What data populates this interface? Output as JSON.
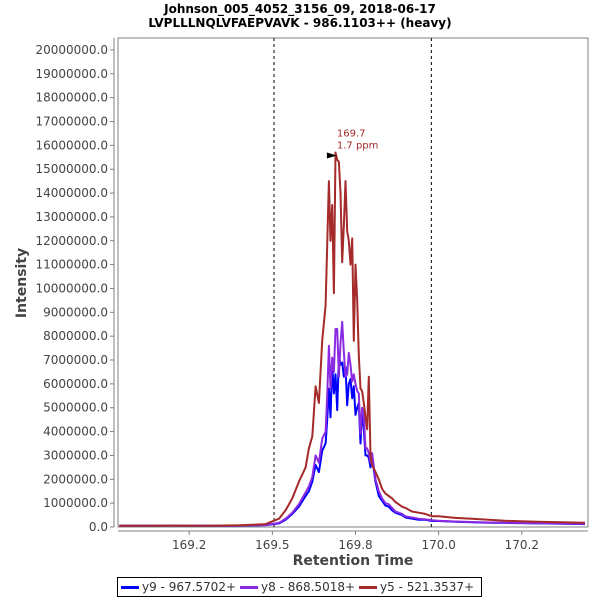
{
  "chart_data": {
    "type": "line",
    "title": "Johnson_005_4052_3156_09, 2018-06-17",
    "subtitle": "LVPLLLNQLVFAEPVAVK - 986.1103++ (heavy)",
    "xlabel": "Retention Time",
    "ylabel": "Intensity",
    "xlim": [
      169.036,
      170.449
    ],
    "ylim": [
      0,
      20500000
    ],
    "x_ticks": [
      169.25,
      169.5,
      169.75,
      170.0,
      170.25
    ],
    "x_tick_labels": [
      "169.2",
      "169.5",
      "169.8",
      "170.0",
      "170.2"
    ],
    "y_ticks": [
      0,
      1000000,
      2000000,
      3000000,
      4000000,
      5000000,
      6000000,
      7000000,
      8000000,
      9000000,
      10000000,
      11000000,
      12000000,
      13000000,
      14000000,
      15000000,
      16000000,
      17000000,
      18000000,
      19000000,
      20000000
    ],
    "y_tick_labels": [
      "0.0",
      "1000000.0",
      "2000000.0",
      "3000000.0",
      "4000000.0",
      "5000000.0",
      "6000000.0",
      "7000000.0",
      "8000000.0",
      "9000000.0",
      "10000000.0",
      "11000000.0",
      "12000000.0",
      "13000000.0",
      "14000000.0",
      "15000000.0",
      "16000000.0",
      "17000000.0",
      "18000000.0",
      "19000000.0",
      "20000000.0"
    ],
    "grid": false,
    "legend_position": "bottom",
    "boundary_lines": [
      169.505,
      169.978
    ],
    "annotation": {
      "x": 169.7,
      "y": 15700000,
      "line1": "169.7",
      "line2": "1.7 ppm",
      "color": "#a52a2a"
    },
    "series": [
      {
        "name": "y9 - 967.5702+",
        "color": "#0000ff",
        "x": [
          169.04,
          169.1,
          169.2,
          169.3,
          169.4,
          169.48,
          169.52,
          169.54,
          169.56,
          169.58,
          169.6,
          169.61,
          169.62,
          169.63,
          169.64,
          169.65,
          169.66,
          169.665,
          169.67,
          169.675,
          169.68,
          169.685,
          169.69,
          169.695,
          169.7,
          169.705,
          169.71,
          169.715,
          169.72,
          169.725,
          169.73,
          169.735,
          169.74,
          169.745,
          169.75,
          169.755,
          169.76,
          169.765,
          169.77,
          169.775,
          169.78,
          169.785,
          169.79,
          169.795,
          169.8,
          169.81,
          169.82,
          169.83,
          169.84,
          169.85,
          169.86,
          169.87,
          169.88,
          169.89,
          169.9,
          169.92,
          169.94,
          169.96,
          169.98,
          170.0,
          170.05,
          170.1,
          170.15,
          170.2,
          170.3,
          170.44
        ],
        "y": [
          50000,
          50000,
          60000,
          50000,
          60000,
          80000,
          150000,
          300000,
          550000,
          850000,
          1300000,
          1500000,
          1900000,
          2600000,
          2300000,
          3200000,
          3500000,
          4500000,
          5800000,
          4600000,
          6800000,
          5600000,
          6400000,
          4900000,
          7200000,
          6800000,
          6900000,
          6300000,
          6700000,
          5100000,
          6000000,
          6200000,
          5400000,
          5900000,
          4700000,
          5000000,
          5200000,
          3500000,
          4900000,
          4100000,
          3000000,
          3000000,
          2900000,
          2500000,
          2900000,
          1900000,
          1300000,
          1100000,
          900000,
          850000,
          700000,
          600000,
          550000,
          500000,
          400000,
          350000,
          300000,
          300000,
          250000,
          250000,
          220000,
          200000,
          180000,
          170000,
          150000,
          120000
        ]
      },
      {
        "name": "y8 - 868.5018+",
        "color": "#8a2be2",
        "x": [
          169.04,
          169.1,
          169.2,
          169.3,
          169.4,
          169.48,
          169.52,
          169.54,
          169.56,
          169.58,
          169.6,
          169.61,
          169.62,
          169.63,
          169.64,
          169.65,
          169.66,
          169.665,
          169.67,
          169.675,
          169.68,
          169.685,
          169.69,
          169.695,
          169.7,
          169.705,
          169.71,
          169.715,
          169.72,
          169.725,
          169.73,
          169.735,
          169.74,
          169.745,
          169.75,
          169.755,
          169.76,
          169.765,
          169.77,
          169.775,
          169.78,
          169.785,
          169.79,
          169.795,
          169.8,
          169.81,
          169.82,
          169.83,
          169.84,
          169.85,
          169.86,
          169.87,
          169.88,
          169.89,
          169.9,
          169.92,
          169.94,
          169.96,
          169.98,
          170.0,
          170.05,
          170.1,
          170.15,
          170.2,
          170.3,
          170.44
        ],
        "y": [
          50000,
          50000,
          60000,
          50000,
          60000,
          90000,
          170000,
          350000,
          600000,
          950000,
          1450000,
          1700000,
          2100000,
          3000000,
          2700000,
          3700000,
          4000000,
          5500000,
          7600000,
          5800000,
          7100000,
          6500000,
          8300000,
          8300000,
          6300000,
          7700000,
          8600000,
          7300000,
          6300000,
          6400000,
          7300000,
          6800000,
          6100000,
          6400000,
          6000000,
          5700000,
          5600000,
          3900000,
          5000000,
          4700000,
          3300000,
          3300000,
          3100000,
          2700000,
          3100000,
          2000000,
          1500000,
          1200000,
          1000000,
          950000,
          800000,
          650000,
          600000,
          550000,
          450000,
          400000,
          350000,
          320000,
          280000,
          260000,
          230000,
          210000,
          190000,
          180000,
          160000,
          130000
        ]
      },
      {
        "name": "y5 - 521.3537+",
        "color": "#a52a2a",
        "x": [
          169.04,
          169.1,
          169.2,
          169.3,
          169.4,
          169.48,
          169.52,
          169.54,
          169.56,
          169.58,
          169.6,
          169.61,
          169.62,
          169.63,
          169.64,
          169.65,
          169.66,
          169.665,
          169.67,
          169.675,
          169.68,
          169.685,
          169.69,
          169.695,
          169.7,
          169.705,
          169.71,
          169.715,
          169.72,
          169.725,
          169.73,
          169.735,
          169.74,
          169.745,
          169.75,
          169.755,
          169.76,
          169.765,
          169.77,
          169.775,
          169.78,
          169.785,
          169.79,
          169.795,
          169.8,
          169.81,
          169.82,
          169.83,
          169.84,
          169.85,
          169.86,
          169.87,
          169.88,
          169.89,
          169.9,
          169.92,
          169.94,
          169.96,
          169.98,
          170.0,
          170.05,
          170.1,
          170.15,
          170.2,
          170.3,
          170.44
        ],
        "y": [
          50000,
          50000,
          60000,
          50000,
          70000,
          120000,
          350000,
          700000,
          1200000,
          1900000,
          2500000,
          3300000,
          3800000,
          5900000,
          5200000,
          7800000,
          9300000,
          11800000,
          14500000,
          12000000,
          13500000,
          9800000,
          15700000,
          15400000,
          15300000,
          14000000,
          11100000,
          12700000,
          14500000,
          12400000,
          12000000,
          11000000,
          12100000,
          7800000,
          11000000,
          9500000,
          7200000,
          5800000,
          5700000,
          5200000,
          4600000,
          4100000,
          6300000,
          3000000,
          2600000,
          2300000,
          2000000,
          1600000,
          1400000,
          1300000,
          1200000,
          1050000,
          950000,
          850000,
          800000,
          650000,
          600000,
          550000,
          450000,
          450000,
          380000,
          350000,
          300000,
          260000,
          220000,
          180000
        ]
      }
    ]
  }
}
